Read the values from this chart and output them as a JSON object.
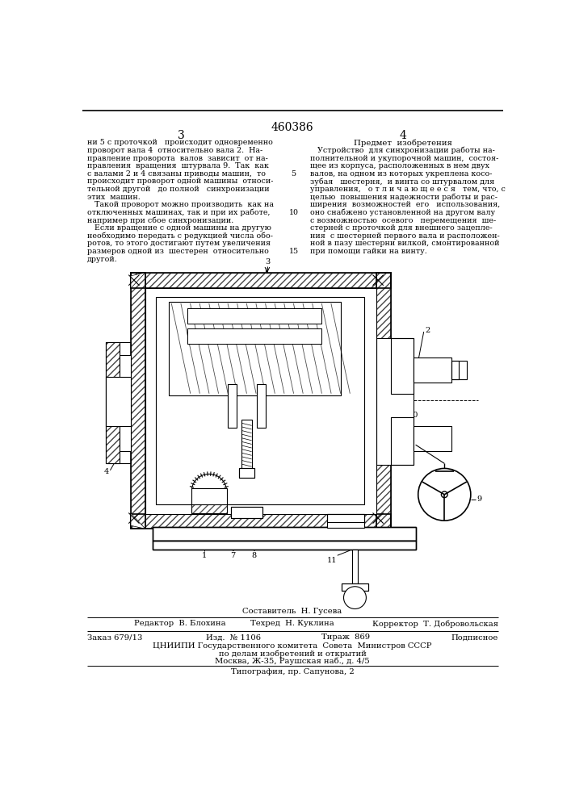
{
  "patent_number": "460386",
  "page_left": "3",
  "page_right": "4",
  "left_col": [
    "ни 5 с проточкой   происходит одновременно",
    "проворот вала 4  относительно вала 2.  На-",
    "правление проворота  валов  зависит  от на-",
    "правления  вращения  штурвала 9.  Так  как",
    "с валами 2 и 4 связаны приводы машин,  то",
    "происходит проворот одной машины  относи-",
    "тельной другой   до полной   синхронизации",
    "этих  машин.",
    "   Такой проворот можно производить  как на",
    "отключенных машинах, так и при их работе,",
    "например при сбое синхронизации.",
    "   Если вращение с одной машины на другую",
    "необходимо передать с редукцией числа обо-",
    "ротов, то этого достигают путем увеличения",
    "размеров одной из  шестерен  относительно",
    "другой."
  ],
  "right_header": "Предмет  изобретения",
  "right_col": [
    "   Устройство  для синхронизации работы на-",
    "полнительной и укупорочной машин,  состоя-",
    "щее из корпуса, расположенных в нем двух",
    "валов, на одном из которых укреплена косо-",
    "зубая   шестерня,  и винта со штурвалом для",
    "управления,   о т л и ч а ю щ е е с я   тем, что, с",
    "целью  повышения надежности работы и рас-",
    "ширения  возможностей  его   использования,",
    "оно снабжено установленной на другом валу",
    "с возможностью  осевого   перемещения  ше-",
    "стерней с проточкой для внешнего зацепле-",
    "ния  с шестерней первого вала и расположен-",
    "ной в пазу шестерни вилкой, смонтированной",
    "при помощи гайки на винту."
  ],
  "sostavitel": "Составитель  Н. Гусева",
  "footer_left": "Редактор  В. Блохина",
  "footer_center": "Техред  Н. Куклина",
  "footer_right": "Корректор  Т. Добровольская",
  "footer_order": "Заказ 679/13",
  "footer_izd": "Изд.  № 1106",
  "footer_tirazh": "Тираж  869",
  "footer_podp": "Подписное",
  "footer_org": "ЦНИИПИ Государственного комитета  Совета  Министров СССР",
  "footer_dept": "по делам изобретений и открытий",
  "footer_addr": "Москва, Ж-35, Раушская наб., д. 4/5",
  "footer_tip": "Типография, пр. Сапунова, 2",
  "bg": "#ffffff",
  "fg": "#000000",
  "hatch_color": "#555555",
  "light_gray": "#e0e0e0",
  "mid_gray": "#b0b0b0",
  "dark_gray": "#888888"
}
